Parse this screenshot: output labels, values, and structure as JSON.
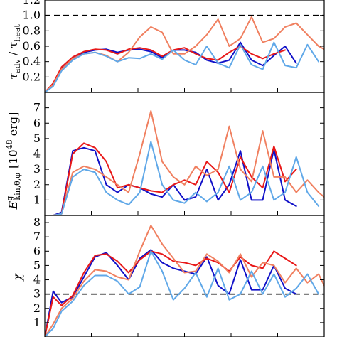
{
  "chart_data": [
    {
      "type": "line",
      "panel": "top",
      "ylabel": "τadv / τheat",
      "ylabel_main": "τ",
      "ylabel_sub1": "adv",
      "ylabel_mid": " / τ",
      "ylabel_sub2": "heat",
      "ylim": [
        0,
        1.2
      ],
      "yticks": [
        "0.2",
        "0.4",
        "0.6",
        "0.8",
        "1.0",
        "1.2"
      ],
      "yticks_values": [
        0.2,
        0.4,
        0.6,
        0.8,
        1.0,
        1.2
      ],
      "reference_line": 1.0,
      "x": [
        0,
        0.03,
        0.06,
        0.1,
        0.14,
        0.18,
        0.22,
        0.26,
        0.3,
        0.34,
        0.38,
        0.42,
        0.46,
        0.5,
        0.54,
        0.58,
        0.62,
        0.66,
        0.7,
        0.74,
        0.78,
        0.82,
        0.86,
        0.9,
        0.94,
        0.98,
        1.0
      ],
      "series": [
        {
          "color": "#1010c8",
          "values": [
            0.0,
            0.1,
            0.32,
            0.45,
            0.52,
            0.55,
            0.56,
            0.52,
            0.55,
            0.56,
            0.53,
            0.45,
            0.55,
            0.55,
            0.52,
            0.42,
            0.38,
            0.42,
            0.65,
            0.42,
            0.35,
            0.48,
            0.6,
            0.38,
            null,
            null,
            null
          ]
        },
        {
          "color": "#e81818",
          "values": [
            0.0,
            0.12,
            0.33,
            0.46,
            0.53,
            0.56,
            0.55,
            0.5,
            0.56,
            0.58,
            0.55,
            0.47,
            0.55,
            0.58,
            0.5,
            0.44,
            0.42,
            0.52,
            0.6,
            0.5,
            0.44,
            0.5,
            0.55,
            null,
            null,
            null,
            null
          ]
        },
        {
          "color": "#f08060",
          "values": [
            0.0,
            0.1,
            0.3,
            0.44,
            0.5,
            0.52,
            0.48,
            0.4,
            0.52,
            0.72,
            0.85,
            0.78,
            0.5,
            0.5,
            0.6,
            0.75,
            0.95,
            0.6,
            0.7,
            0.98,
            0.65,
            0.7,
            0.85,
            0.9,
            0.75,
            0.6,
            0.56
          ]
        },
        {
          "color": "#60a8e8",
          "values": [
            0.0,
            0.08,
            0.28,
            0.42,
            0.5,
            0.52,
            0.47,
            0.4,
            0.45,
            0.44,
            0.5,
            0.43,
            0.55,
            0.42,
            0.36,
            0.6,
            0.38,
            0.32,
            0.62,
            0.36,
            0.3,
            0.65,
            0.35,
            0.32,
            0.62,
            0.4,
            null
          ]
        }
      ]
    },
    {
      "type": "line",
      "panel": "middle",
      "ylabel": "E^g_{kin,θ,φ} [10^48 erg]",
      "ylabel_main": "E",
      "ylabel_sup": "g",
      "ylabel_sub": "kin,θ,φ",
      "ylabel_unit": "[10",
      "ylabel_unit_exp": "48",
      "ylabel_unit_end": " erg]",
      "ylim": [
        0,
        8
      ],
      "yticks": [
        "1",
        "2",
        "3",
        "4",
        "5",
        "6",
        "7"
      ],
      "yticks_values": [
        1,
        2,
        3,
        4,
        5,
        6,
        7
      ],
      "x": [
        0,
        0.03,
        0.06,
        0.1,
        0.14,
        0.18,
        0.22,
        0.26,
        0.3,
        0.34,
        0.38,
        0.42,
        0.46,
        0.5,
        0.54,
        0.58,
        0.62,
        0.66,
        0.7,
        0.74,
        0.78,
        0.82,
        0.86,
        0.9,
        0.94,
        0.98,
        1.0
      ],
      "series": [
        {
          "color": "#1010c8",
          "values": [
            0.0,
            0.0,
            0.2,
            4.2,
            4.4,
            4.2,
            2.0,
            1.5,
            2.0,
            1.8,
            1.4,
            1.2,
            2.0,
            1.0,
            1.2,
            3.0,
            1.0,
            2.0,
            4.2,
            1.0,
            1.0,
            4.3,
            1.0,
            0.6,
            null,
            null,
            null
          ]
        },
        {
          "color": "#e81818",
          "values": [
            0.0,
            0.0,
            0.1,
            4.0,
            4.7,
            4.4,
            3.5,
            1.8,
            2.0,
            1.8,
            1.6,
            1.5,
            2.0,
            2.3,
            2.0,
            3.5,
            2.8,
            1.5,
            3.8,
            2.5,
            1.8,
            4.5,
            2.2,
            3.0,
            null,
            null,
            null
          ]
        },
        {
          "color": "#f08060",
          "values": [
            0.0,
            0.0,
            0.1,
            2.8,
            3.2,
            3.0,
            2.5,
            2.0,
            1.5,
            4.0,
            6.8,
            3.5,
            2.5,
            2.0,
            3.2,
            2.6,
            3.0,
            5.8,
            3.0,
            2.2,
            5.5,
            2.5,
            2.5,
            1.5,
            2.3,
            1.5,
            1.2
          ]
        },
        {
          "color": "#60a8e8",
          "values": [
            0.0,
            0.0,
            0.1,
            2.5,
            3.0,
            2.8,
            1.5,
            1.0,
            0.7,
            1.5,
            4.8,
            2.0,
            1.0,
            0.8,
            1.5,
            0.9,
            1.5,
            3.2,
            1.0,
            1.5,
            3.2,
            1.0,
            1.5,
            3.8,
            1.5,
            0.6,
            null
          ]
        }
      ]
    },
    {
      "type": "line",
      "panel": "bottom",
      "ylabel": "χ",
      "ylim": [
        0,
        8.5
      ],
      "yticks": [
        "1",
        "2",
        "3",
        "4",
        "5",
        "6",
        "7",
        "8"
      ],
      "yticks_values": [
        1,
        2,
        3,
        4,
        5,
        6,
        7,
        8
      ],
      "reference_line": 3,
      "x": [
        0,
        0.03,
        0.06,
        0.1,
        0.14,
        0.18,
        0.22,
        0.26,
        0.3,
        0.34,
        0.38,
        0.42,
        0.46,
        0.5,
        0.54,
        0.58,
        0.62,
        0.66,
        0.7,
        0.74,
        0.78,
        0.82,
        0.86,
        0.9,
        0.94,
        0.98,
        1.0
      ],
      "series": [
        {
          "color": "#1010c8",
          "values": [
            0.0,
            3.2,
            2.4,
            2.8,
            4.2,
            5.6,
            5.9,
            5.0,
            4.0,
            5.5,
            6.1,
            5.2,
            4.8,
            4.6,
            4.4,
            5.6,
            3.6,
            3.0,
            5.4,
            3.3,
            3.3,
            5.0,
            3.4,
            3.0,
            null,
            null,
            null
          ]
        },
        {
          "color": "#e81818",
          "values": [
            0.0,
            2.8,
            2.2,
            2.9,
            4.5,
            5.7,
            5.8,
            5.3,
            4.5,
            5.4,
            6.0,
            5.8,
            5.3,
            5.2,
            5.0,
            5.5,
            5.2,
            4.6,
            5.6,
            5.0,
            4.8,
            6.0,
            5.5,
            5.0,
            null,
            null,
            null
          ]
        },
        {
          "color": "#f08060",
          "values": [
            0.0,
            0.9,
            2.0,
            2.7,
            3.9,
            4.7,
            4.6,
            4.2,
            4.0,
            6.0,
            7.8,
            6.5,
            5.5,
            4.5,
            4.6,
            5.8,
            5.3,
            4.5,
            5.8,
            4.2,
            5.2,
            5.0,
            3.8,
            4.8,
            3.8,
            4.4,
            3.6
          ]
        },
        {
          "color": "#60a8e8",
          "values": [
            0.0,
            0.6,
            1.8,
            2.5,
            3.6,
            4.3,
            4.3,
            3.9,
            3.0,
            3.5,
            6.0,
            4.6,
            2.6,
            3.4,
            4.5,
            2.8,
            4.8,
            2.6,
            3.0,
            4.6,
            3.0,
            4.4,
            2.8,
            3.4,
            4.4,
            3.0,
            null
          ]
        }
      ]
    }
  ]
}
